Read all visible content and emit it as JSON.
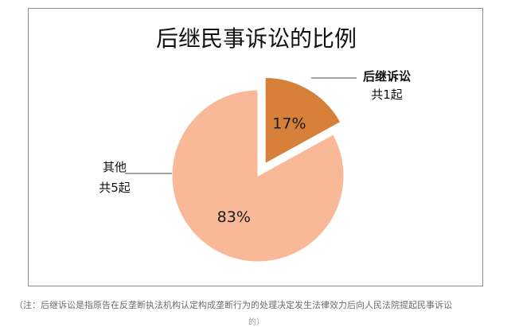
{
  "chart_data": {
    "type": "pie",
    "title": "后继民事诉讼的比例",
    "slices": [
      {
        "name": "后继诉讼",
        "count_label": "共1起",
        "value": 17,
        "label": "17%",
        "color": "#d6803a",
        "exploded": true
      },
      {
        "name": "其他",
        "count_label": "共5起",
        "value": 83,
        "label": "83%",
        "color": "#f9b897",
        "exploded": false
      }
    ]
  },
  "footnote": {
    "text": "（注：后继诉讼是指原告在反垄断执法机构认定构成垄断行为的处理决定发生法律效力后向人民法院提起民事诉讼",
    "tail": "的）"
  }
}
